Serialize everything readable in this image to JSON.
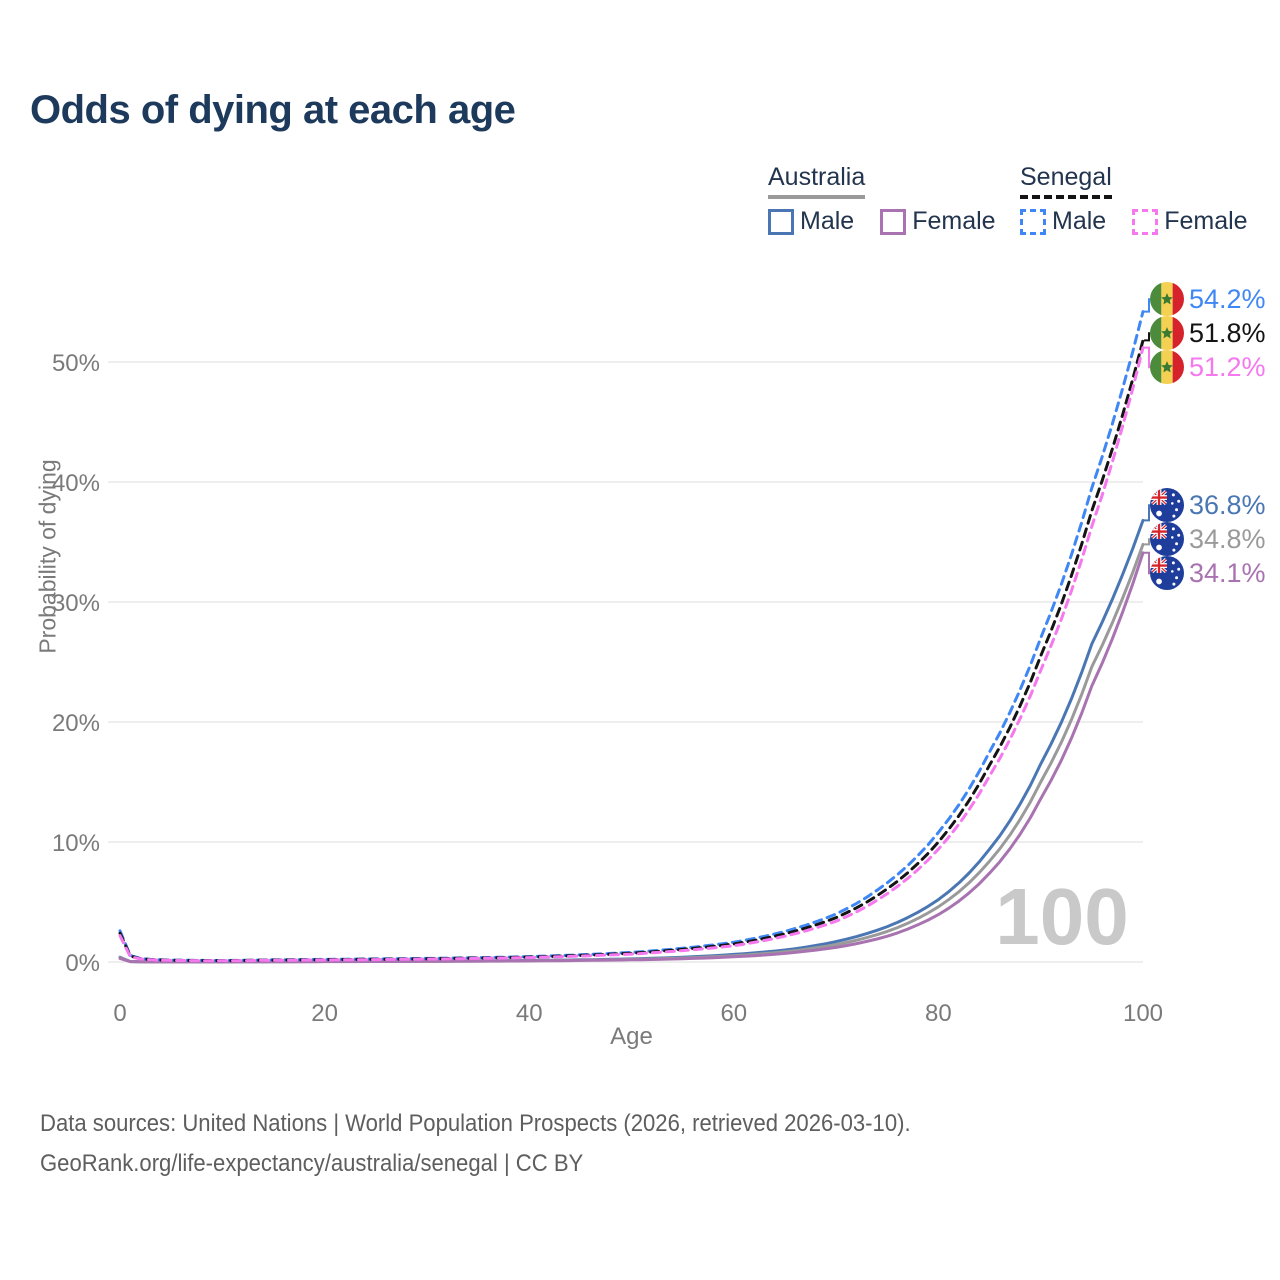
{
  "title": "Odds of dying at each age",
  "legend": {
    "australia": {
      "label": "Australia",
      "male": "Male",
      "female": "Female"
    },
    "senegal": {
      "label": "Senegal",
      "male": "Male",
      "female": "Female"
    }
  },
  "colors": {
    "title_text": "#1d3a5c",
    "axis_text": "#7a7a7a",
    "grid": "#e9e9e9",
    "watermark": "#c9c9c9",
    "australia_male": "#4a77b4",
    "australia_all": "#9a9a9a",
    "australia_female": "#a873b0",
    "senegal_male": "#3f87f5",
    "senegal_all": "#141414",
    "senegal_female": "#f678ee"
  },
  "chart_data": {
    "type": "line",
    "title": "Odds of dying at each age",
    "xlabel": "Age",
    "ylabel": "Probability of dying",
    "xlim": [
      0,
      100
    ],
    "ylim": [
      0,
      55
    ],
    "x_ticks": [
      0,
      20,
      40,
      60,
      80,
      100
    ],
    "y_ticks": [
      "0%",
      "10%",
      "20%",
      "30%",
      "40%",
      "50%"
    ],
    "y_tick_values": [
      0,
      10,
      20,
      30,
      40,
      50
    ],
    "grid": "horizontal",
    "legend_position": "top-right",
    "watermark": "100",
    "x": [
      0,
      1,
      2,
      3,
      5,
      10,
      15,
      20,
      25,
      30,
      35,
      40,
      45,
      50,
      55,
      60,
      65,
      70,
      75,
      80,
      85,
      90,
      95,
      100
    ],
    "series": [
      {
        "name": "Senegal Male",
        "color": "#3f87f5",
        "dashed": true,
        "end_label": "54.2%",
        "end_value": 54.2,
        "values": [
          2.6,
          0.55,
          0.3,
          0.22,
          0.16,
          0.12,
          0.18,
          0.22,
          0.26,
          0.3,
          0.36,
          0.45,
          0.6,
          0.8,
          1.15,
          1.65,
          2.55,
          4.0,
          6.6,
          10.8,
          17.5,
          27.0,
          39.5,
          54.2
        ]
      },
      {
        "name": "Senegal",
        "color": "#141414",
        "dashed": true,
        "end_label": "51.8%",
        "end_value": 51.8,
        "values": [
          2.4,
          0.5,
          0.27,
          0.2,
          0.14,
          0.11,
          0.16,
          0.19,
          0.23,
          0.27,
          0.33,
          0.41,
          0.55,
          0.73,
          1.05,
          1.5,
          2.35,
          3.7,
          6.1,
          10.0,
          16.4,
          25.5,
          37.6,
          51.8
        ]
      },
      {
        "name": "Senegal Female",
        "color": "#f678ee",
        "dashed": true,
        "end_label": "51.2%",
        "end_value": 51.2,
        "values": [
          2.2,
          0.45,
          0.25,
          0.18,
          0.13,
          0.1,
          0.14,
          0.17,
          0.2,
          0.24,
          0.3,
          0.37,
          0.5,
          0.66,
          0.95,
          1.36,
          2.15,
          3.4,
          5.7,
          9.4,
          15.5,
          24.3,
          36.3,
          51.2
        ]
      },
      {
        "name": "Australia Male",
        "color": "#4a77b4",
        "dashed": false,
        "end_label": "36.8%",
        "end_value": 36.8,
        "values": [
          0.4,
          0.04,
          0.02,
          0.02,
          0.01,
          0.01,
          0.03,
          0.06,
          0.07,
          0.08,
          0.1,
          0.13,
          0.18,
          0.26,
          0.4,
          0.63,
          1.0,
          1.7,
          2.95,
          5.2,
          9.4,
          16.5,
          26.5,
          36.8
        ]
      },
      {
        "name": "Australia",
        "color": "#9a9a9a",
        "dashed": false,
        "end_label": "34.8%",
        "end_value": 34.8,
        "values": [
          0.35,
          0.03,
          0.02,
          0.01,
          0.01,
          0.01,
          0.02,
          0.04,
          0.05,
          0.06,
          0.08,
          0.11,
          0.15,
          0.22,
          0.33,
          0.52,
          0.85,
          1.45,
          2.55,
          4.6,
          8.4,
          15.0,
          24.6,
          34.8
        ]
      },
      {
        "name": "Australia Female",
        "color": "#a873b0",
        "dashed": false,
        "end_label": "34.1%",
        "end_value": 34.1,
        "values": [
          0.3,
          0.03,
          0.02,
          0.01,
          0.01,
          0.01,
          0.02,
          0.03,
          0.04,
          0.05,
          0.07,
          0.09,
          0.13,
          0.18,
          0.27,
          0.43,
          0.72,
          1.22,
          2.15,
          3.95,
          7.4,
          13.6,
          23.0,
          34.1
        ]
      }
    ]
  },
  "footer": {
    "line1": "Data sources: United Nations | World Population Prospects (2026, retrieved 2026-03-10).",
    "line2": "GeoRank.org/life-expectancy/australia/senegal | CC BY"
  }
}
